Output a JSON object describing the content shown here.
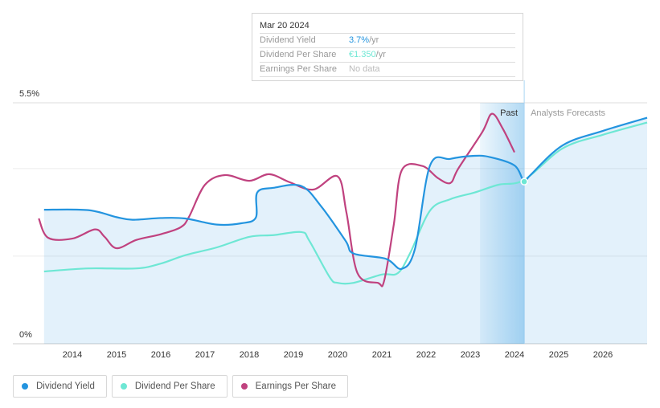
{
  "tooltip": {
    "date": "Mar 20 2024",
    "rows": [
      {
        "label": "Dividend Yield",
        "value": "3.7%",
        "unit": " /yr",
        "color": "#2394df"
      },
      {
        "label": "Dividend Per Share",
        "value": "€1.350",
        "unit": " /yr",
        "color": "#6ee7d4"
      },
      {
        "label": "Earnings Per Share",
        "value": "No data",
        "unit": "",
        "color": "#bbbbbb"
      }
    ]
  },
  "legend": [
    {
      "label": "Dividend Yield",
      "color": "#2394df"
    },
    {
      "label": "Dividend Per Share",
      "color": "#6ee7d4"
    },
    {
      "label": "Earnings Per Share",
      "color": "#c0427f"
    }
  ],
  "chart_data": {
    "type": "line",
    "ylim": [
      0,
      5.5
    ],
    "y_tick_labels": [
      "0%",
      "5.5%"
    ],
    "xlim": [
      2013.0,
      2027.0
    ],
    "x_tick_labels": [
      "2014",
      "2015",
      "2016",
      "2017",
      "2018",
      "2019",
      "2020",
      "2021",
      "2022",
      "2023",
      "2024",
      "2025",
      "2026"
    ],
    "grid": true,
    "regions": {
      "past_label": "Past",
      "forecast_label": "Analysts Forecasts",
      "past_range": [
        2023.22,
        2024.22
      ]
    },
    "marker": {
      "x": 2024.22,
      "y": 3.7
    },
    "series": [
      {
        "name": "Dividend Yield",
        "color": "#2394df",
        "filled": true,
        "x": [
          2013.36,
          2014.36,
          2015.0,
          2015.36,
          2016.0,
          2016.55,
          2017.27,
          2017.82,
          2018.15,
          2018.18,
          2018.55,
          2019.18,
          2019.64,
          2020.18,
          2020.36,
          2021.09,
          2021.45,
          2021.75,
          2022.09,
          2022.55,
          2023.09,
          2023.45,
          2024.0,
          2024.22,
          2024.36,
          2025.09,
          2026.0,
          2027.0
        ],
        "y": [
          3.06,
          3.05,
          2.89,
          2.83,
          2.87,
          2.86,
          2.72,
          2.75,
          2.88,
          3.45,
          3.56,
          3.6,
          3.12,
          2.35,
          2.06,
          1.94,
          1.71,
          2.17,
          4.07,
          4.22,
          4.29,
          4.26,
          4.07,
          3.7,
          3.85,
          4.53,
          4.86,
          5.16
        ]
      },
      {
        "name": "Dividend Per Share",
        "color": "#6ee7d4",
        "x": [
          2013.36,
          2014.36,
          2015.45,
          2016.0,
          2016.55,
          2017.27,
          2018.0,
          2018.55,
          2019.18,
          2019.36,
          2019.82,
          2020.0,
          2020.36,
          2021.0,
          2021.36,
          2021.64,
          2022.09,
          2022.55,
          2023.09,
          2023.64,
          2024.22,
          2025.09,
          2026.0,
          2027.0
        ],
        "y": [
          1.65,
          1.72,
          1.72,
          1.83,
          2.02,
          2.2,
          2.44,
          2.48,
          2.55,
          2.35,
          1.52,
          1.39,
          1.39,
          1.58,
          1.61,
          2.07,
          3.04,
          3.3,
          3.45,
          3.63,
          3.74,
          4.46,
          4.77,
          5.05
        ]
      },
      {
        "name": "Earnings Per Share",
        "color": "#c0427f",
        "x": [
          2013.24,
          2013.45,
          2014.0,
          2014.51,
          2014.73,
          2015.0,
          2015.45,
          2016.0,
          2016.45,
          2016.64,
          2017.0,
          2017.45,
          2018.0,
          2018.45,
          2018.91,
          2019.45,
          2020.0,
          2020.2,
          2020.45,
          2020.91,
          2021.05,
          2021.27,
          2021.45,
          2021.91,
          2022.27,
          2022.55,
          2022.73,
          2023.27,
          2023.49,
          2023.73,
          2024.0
        ],
        "y": [
          2.86,
          2.42,
          2.4,
          2.61,
          2.44,
          2.18,
          2.37,
          2.5,
          2.66,
          2.9,
          3.63,
          3.85,
          3.72,
          3.87,
          3.69,
          3.52,
          3.82,
          2.99,
          1.61,
          1.39,
          1.43,
          2.72,
          3.96,
          4.06,
          3.78,
          3.67,
          4.0,
          4.83,
          5.25,
          4.92,
          4.37
        ]
      }
    ]
  }
}
